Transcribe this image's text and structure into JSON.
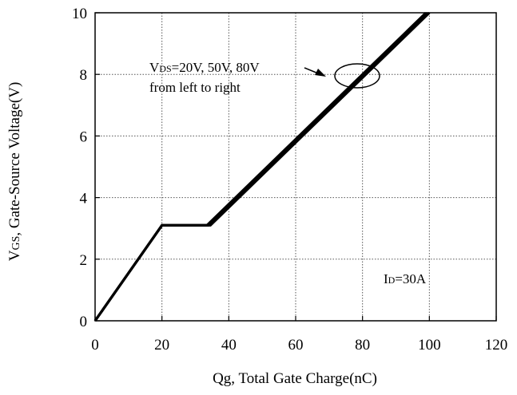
{
  "chart_data": {
    "type": "line",
    "title": "",
    "xlabel": "Qg, Total Gate Charge(nC)",
    "ylabel": {
      "prefix": "V",
      "subscript": "GS",
      "rest": ", Gate-Source Voltage(V)"
    },
    "xlim": [
      0,
      120
    ],
    "ylim": [
      0,
      10
    ],
    "x_ticks": [
      0,
      20,
      40,
      60,
      80,
      100,
      120
    ],
    "y_ticks": [
      0,
      2,
      4,
      6,
      8,
      10
    ],
    "grid": true,
    "grid_style": "dotted",
    "series": [
      {
        "vds": "20V",
        "points": [
          [
            0,
            0
          ],
          [
            20,
            3.1
          ],
          [
            33.5,
            3.1
          ],
          [
            99,
            10
          ]
        ]
      },
      {
        "vds": "50V",
        "points": [
          [
            0,
            0
          ],
          [
            20,
            3.1
          ],
          [
            34,
            3.1
          ],
          [
            99.5,
            10
          ]
        ]
      },
      {
        "vds": "80V",
        "points": [
          [
            0,
            0
          ],
          [
            20,
            3.1
          ],
          [
            34.5,
            3.1
          ],
          [
            100,
            10
          ]
        ]
      }
    ],
    "annotations": {
      "vds_note": {
        "prefix": "V",
        "subscript": "DS",
        "rest": "=20V, 50V, 80V",
        "line2": "from left to right"
      },
      "id_note": {
        "prefix": "I",
        "subscript": "D",
        "rest": "=30A"
      }
    },
    "colors": {
      "line": "#000000",
      "grid": "#555555",
      "axis": "#000000"
    }
  }
}
